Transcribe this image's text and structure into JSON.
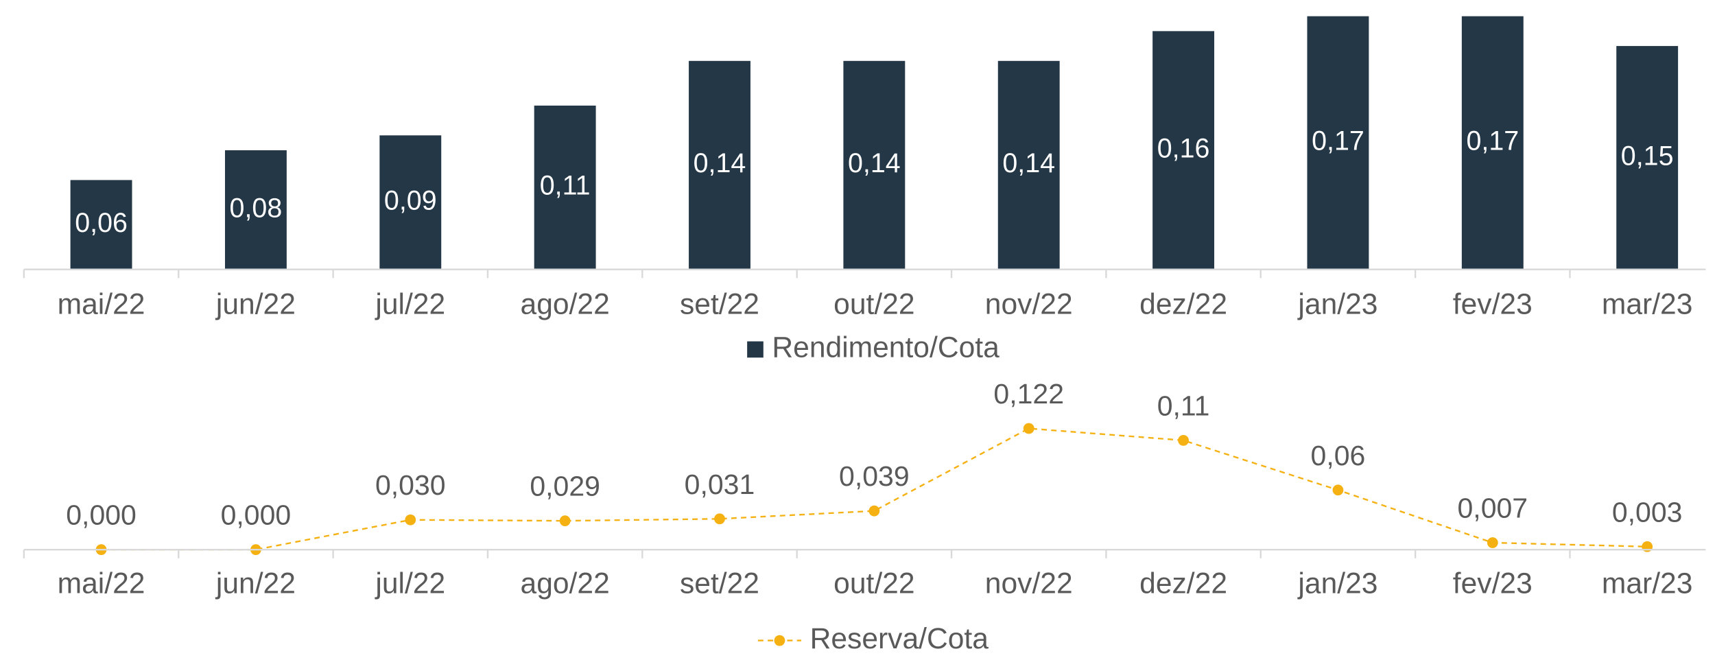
{
  "chart_data": [
    {
      "type": "bar",
      "categories": [
        "mai/22",
        "jun/22",
        "jul/22",
        "ago/22",
        "set/22",
        "out/22",
        "nov/22",
        "dez/22",
        "jan/23",
        "fev/23",
        "mar/23"
      ],
      "series": [
        {
          "name": "Rendimento/Cota",
          "color": "#243746",
          "values": [
            0.06,
            0.08,
            0.09,
            0.11,
            0.14,
            0.14,
            0.14,
            0.16,
            0.17,
            0.17,
            0.15
          ],
          "value_labels": [
            "0,06",
            "0,08",
            "0,09",
            "0,11",
            "0,14",
            "0,14",
            "0,14",
            "0,16",
            "0,17",
            "0,17",
            "0,15"
          ]
        }
      ],
      "legend": "bottom"
    },
    {
      "type": "line",
      "categories": [
        "mai/22",
        "jun/22",
        "jul/22",
        "ago/22",
        "set/22",
        "out/22",
        "nov/22",
        "dez/22",
        "jan/23",
        "fev/23",
        "mar/23"
      ],
      "series": [
        {
          "name": "Reserva/Cota",
          "color": "#f5b111",
          "line_style": "dashed",
          "values": [
            0.0,
            0.0,
            0.03,
            0.029,
            0.031,
            0.039,
            0.122,
            0.11,
            0.06,
            0.007,
            0.003
          ],
          "value_labels": [
            "0,000",
            "0,000",
            "0,030",
            "0,029",
            "0,031",
            "0,039",
            "0,122",
            "0,11",
            "0,06",
            "0,007",
            "0,003"
          ]
        }
      ],
      "legend": "bottom"
    }
  ]
}
